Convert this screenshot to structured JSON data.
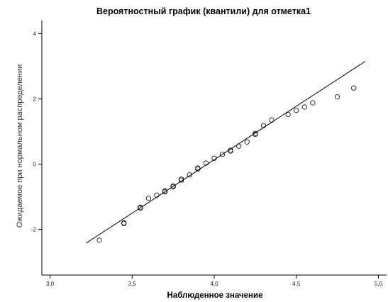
{
  "chart_data": {
    "type": "scatter",
    "title": "Вероятностный график (квантили) для отметка1",
    "xlabel": "Наблюденное значение",
    "ylabel": "Ожидаемое при нормальном распределении",
    "xlim": [
      2.95,
      5.05
    ],
    "ylim": [
      -3.4,
      4.4
    ],
    "x_ticks": [
      "3,0",
      "3,5",
      "4,0",
      "4,5",
      "5,0"
    ],
    "y_ticks": [
      "-2",
      "0",
      "2",
      "4"
    ],
    "grid": false,
    "points": [
      {
        "x": 3.3,
        "y": -2.33
      },
      {
        "x": 3.45,
        "y": -1.82
      },
      {
        "x": 3.45,
        "y": -1.8
      },
      {
        "x": 3.55,
        "y": -1.35
      },
      {
        "x": 3.55,
        "y": -1.32
      },
      {
        "x": 3.6,
        "y": -1.05
      },
      {
        "x": 3.65,
        "y": -0.95
      },
      {
        "x": 3.7,
        "y": -0.85
      },
      {
        "x": 3.7,
        "y": -0.82
      },
      {
        "x": 3.75,
        "y": -0.7
      },
      {
        "x": 3.75,
        "y": -0.67
      },
      {
        "x": 3.8,
        "y": -0.49
      },
      {
        "x": 3.8,
        "y": -0.46
      },
      {
        "x": 3.85,
        "y": -0.33
      },
      {
        "x": 3.9,
        "y": -0.15
      },
      {
        "x": 3.9,
        "y": -0.12
      },
      {
        "x": 3.95,
        "y": 0.03
      },
      {
        "x": 4.0,
        "y": 0.18
      },
      {
        "x": 4.05,
        "y": 0.3
      },
      {
        "x": 4.1,
        "y": 0.4
      },
      {
        "x": 4.1,
        "y": 0.43
      },
      {
        "x": 4.15,
        "y": 0.55
      },
      {
        "x": 4.2,
        "y": 0.68
      },
      {
        "x": 4.25,
        "y": 0.91
      },
      {
        "x": 4.25,
        "y": 0.94
      },
      {
        "x": 4.3,
        "y": 1.18
      },
      {
        "x": 4.35,
        "y": 1.35
      },
      {
        "x": 4.45,
        "y": 1.52
      },
      {
        "x": 4.5,
        "y": 1.65
      },
      {
        "x": 4.55,
        "y": 1.75
      },
      {
        "x": 4.6,
        "y": 1.88
      },
      {
        "x": 4.75,
        "y": 2.06
      },
      {
        "x": 4.85,
        "y": 2.33
      }
    ],
    "reference_line": {
      "x": [
        3.22,
        4.92
      ],
      "y": [
        -2.42,
        3.15
      ]
    },
    "colors": {
      "points": "#000000",
      "line": "#000000",
      "axis": "#000000"
    }
  }
}
